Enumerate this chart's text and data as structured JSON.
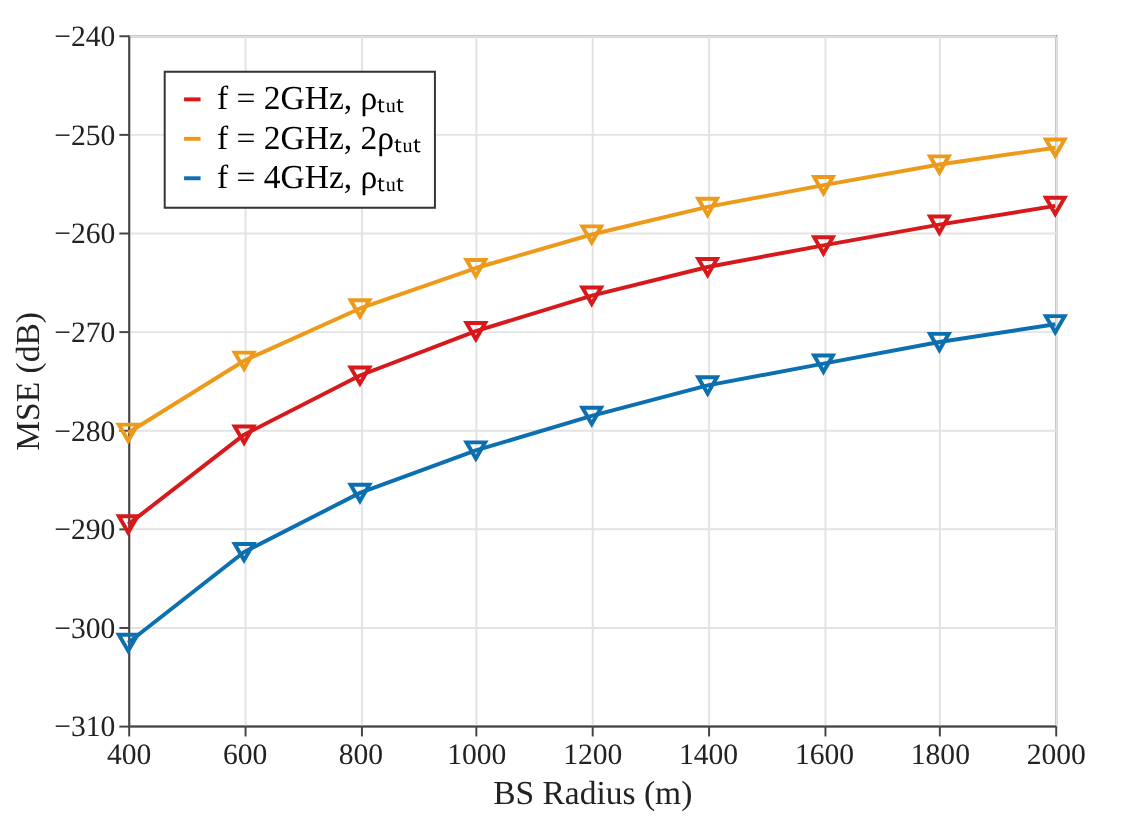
{
  "chart_data": {
    "type": "line",
    "xlabel": "BS Radius (m)",
    "ylabel": "MSE (dB)",
    "x": [
      400,
      600,
      800,
      1000,
      1200,
      1400,
      1600,
      1800,
      2000
    ],
    "series": [
      {
        "name": "f = 2GHz, ρₜᵤₜ",
        "color": "#d7191c",
        "values": [
          -289.6,
          -280.5,
          -274.5,
          -270.0,
          -266.4,
          -263.5,
          -261.3,
          -259.2,
          -257.3
        ]
      },
      {
        "name": "f = 2GHz, 2ρₜᵤₜ",
        "color": "#ed9a1b",
        "values": [
          -280.3,
          -273.0,
          -267.7,
          -263.6,
          -260.2,
          -257.4,
          -255.2,
          -253.1,
          -251.4
        ]
      },
      {
        "name": "f = 4GHz, ρₜᵤₜ",
        "color": "#0b6fb0",
        "values": [
          -301.6,
          -292.4,
          -286.4,
          -282.1,
          -278.6,
          -275.5,
          -273.3,
          -271.1,
          -269.3
        ]
      }
    ],
    "xlim": [
      400,
      2000
    ],
    "xticks": [
      400,
      600,
      800,
      1000,
      1200,
      1400,
      1600,
      1800,
      2000
    ],
    "ylim": [
      -310,
      -240
    ],
    "yticks": [
      -310,
      -300,
      -290,
      -280,
      -270,
      -260,
      -250,
      -240
    ],
    "grid": true,
    "legend": "top left",
    "marker": "triangle",
    "line_style": "solid"
  }
}
